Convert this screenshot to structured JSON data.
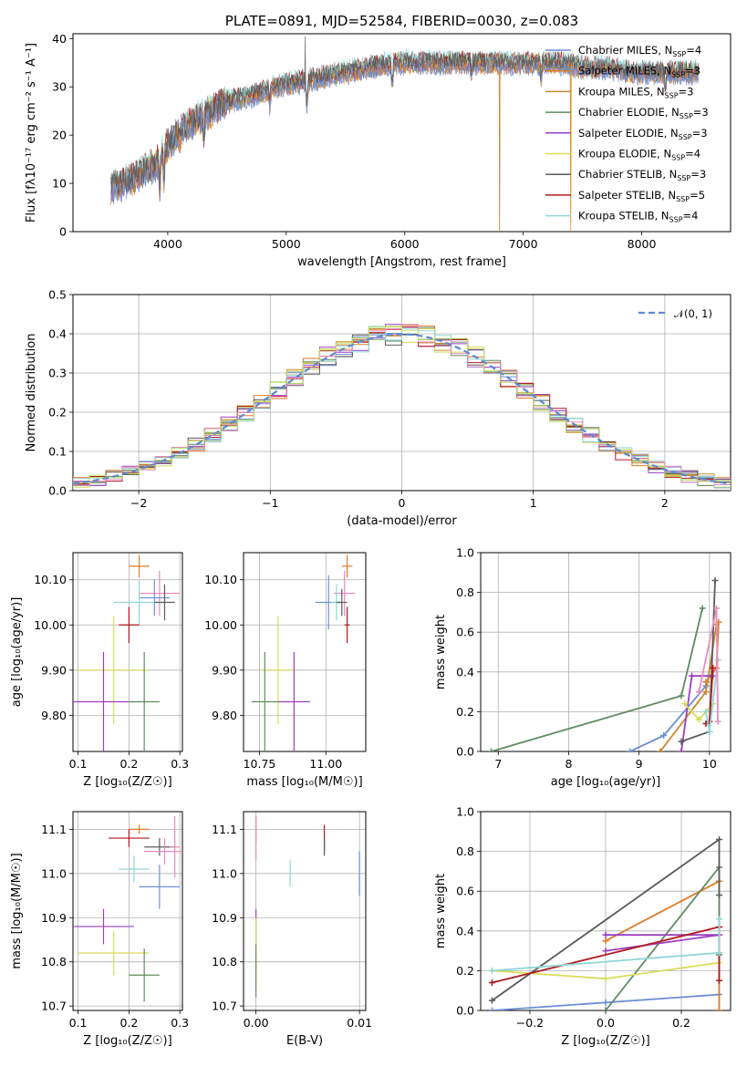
{
  "colors": [
    "#6d8fd6",
    "#e07b2a",
    "#c9882e",
    "#5e8c5e",
    "#9a3fc0",
    "#d8dc5a",
    "#5a5a5a",
    "#b0191f",
    "#8fd6d6",
    "#e98bc0",
    "#b8e060"
  ],
  "chart_data": [
    {
      "type": "line",
      "title": "PLATE=0891, MJD=52584, FIBERID=0030, z=0.083",
      "xlabel": "wavelength [Angstrom, rest frame]",
      "ylabel": "Flux [fλ10⁻¹⁷ erg cm⁻² s⁻¹ A⁻¹]",
      "xlim": [
        3200,
        8750
      ],
      "ylim": [
        0,
        41
      ],
      "xticks": [
        4000,
        5000,
        6000,
        7000,
        8000
      ],
      "yticks": [
        0,
        10,
        20,
        30,
        40
      ],
      "legend_position": "right",
      "legend": [
        {
          "label": "Chabrier MILES, N",
          "sub": "SSP",
          "suffix": "=4"
        },
        {
          "label": "Salpeter MILES, N",
          "sub": "SSP",
          "suffix": "=3"
        },
        {
          "label": "Kroupa MILES, N",
          "sub": "SSP",
          "suffix": "=3"
        },
        {
          "label": "Chabrier ELODIE, N",
          "sub": "SSP",
          "suffix": "=3"
        },
        {
          "label": "Salpeter ELODIE, N",
          "sub": "SSP",
          "suffix": "=3"
        },
        {
          "label": "Kroupa ELODIE, N",
          "sub": "SSP",
          "suffix": "=4"
        },
        {
          "label": "Chabrier STELIB, N",
          "sub": "SSP",
          "suffix": "=3"
        },
        {
          "label": "Salpeter STELIB, N",
          "sub": "SSP",
          "suffix": "=5"
        },
        {
          "label": "Kroupa STELIB, N",
          "sub": "SSP",
          "suffix": "=4"
        }
      ],
      "continuum": [
        [
          3520,
          9
        ],
        [
          3700,
          11
        ],
        [
          3900,
          14
        ],
        [
          4000,
          18
        ],
        [
          4100,
          21
        ],
        [
          4300,
          24
        ],
        [
          4500,
          27
        ],
        [
          4700,
          28
        ],
        [
          4900,
          30
        ],
        [
          5100,
          31
        ],
        [
          5300,
          32
        ],
        [
          5500,
          33
        ],
        [
          5700,
          34
        ],
        [
          5900,
          35
        ],
        [
          6100,
          35
        ],
        [
          6300,
          35
        ],
        [
          6500,
          35
        ],
        [
          6700,
          35
        ],
        [
          6900,
          35
        ],
        [
          7100,
          35
        ],
        [
          7300,
          35
        ],
        [
          7500,
          34
        ],
        [
          7700,
          34
        ],
        [
          7900,
          33
        ],
        [
          8100,
          33
        ],
        [
          8300,
          33
        ],
        [
          8500,
          33
        ]
      ],
      "features": [
        [
          3933,
          -6
        ],
        [
          3968,
          -6
        ],
        [
          4101,
          -3
        ],
        [
          4304,
          -4
        ],
        [
          4861,
          -3
        ],
        [
          5175,
          -5
        ],
        [
          5894,
          -5
        ],
        [
          6563,
          -2
        ],
        [
          7150,
          -3
        ],
        [
          8200,
          -3
        ]
      ],
      "spikes": [
        [
          5160,
          40,
          6
        ],
        [
          5160,
          -10,
          6
        ],
        [
          6800,
          -35,
          1
        ],
        [
          6800,
          -38,
          3
        ],
        [
          7400,
          -38,
          1
        ],
        [
          7405,
          -33,
          5
        ]
      ]
    },
    {
      "type": "histogram",
      "xlabel": "(data-model)/error",
      "ylabel": "Normed distribution",
      "xlim": [
        -2.5,
        2.5
      ],
      "ylim": [
        0,
        0.5
      ],
      "xticks": [
        -2,
        -1,
        0,
        1,
        2
      ],
      "yticks": [
        0,
        0.1,
        0.2,
        0.3,
        0.4,
        0.5
      ],
      "bin_width": 0.125,
      "legend": [
        {
          "label": "𝒩(0, 1)"
        }
      ],
      "mean": 0,
      "std": 1
    },
    {
      "type": "scatter",
      "xlabel": "Z [log₁₀(Z/Z☉)]",
      "ylabel": "age  [log₁₀(age/yr)]",
      "xlim": [
        0.09,
        0.305
      ],
      "ylim": [
        9.72,
        10.16
      ],
      "xticks": [
        0.1,
        0.2,
        0.3
      ],
      "yticks": [
        9.8,
        9.9,
        10.0,
        10.1
      ],
      "points": [
        {
          "x": 0.22,
          "y": 10.13,
          "xerr": 0.02,
          "yerr": 0.025,
          "c": 1
        },
        {
          "x": 0.26,
          "y": 10.07,
          "xerr": 0.04,
          "yerr": 0.05,
          "c": 9
        },
        {
          "x": 0.25,
          "y": 10.06,
          "xerr": 0.03,
          "yerr": 0.04,
          "c": 0
        },
        {
          "x": 0.22,
          "y": 10.05,
          "xerr": 0.05,
          "yerr": 0.05,
          "c": 8
        },
        {
          "x": 0.27,
          "y": 10.05,
          "xerr": 0.02,
          "yerr": 0.04,
          "c": 6
        },
        {
          "x": 0.2,
          "y": 10.0,
          "xerr": 0.02,
          "yerr": 0.04,
          "c": 7
        },
        {
          "x": 0.17,
          "y": 9.9,
          "xerr": 0.07,
          "yerr": 0.12,
          "c": 5
        },
        {
          "x": 0.15,
          "y": 9.83,
          "xerr": 0.06,
          "yerr": 0.11,
          "c": 4
        },
        {
          "x": 0.23,
          "y": 9.83,
          "xerr": 0.03,
          "yerr": 0.11,
          "c": 3
        }
      ]
    },
    {
      "type": "scatter",
      "xlabel": "mass [log₁₀(M/M☉)]",
      "ylabel": "",
      "xlim": [
        10.69,
        11.15
      ],
      "ylim": [
        9.72,
        10.16
      ],
      "xticks": [
        10.75,
        11.0
      ],
      "xticklabels": [
        "10.75",
        "11.00"
      ],
      "yticks": [
        9.8,
        9.9,
        10.0,
        10.1
      ],
      "points": [
        {
          "x": 11.08,
          "y": 10.13,
          "xerr": 0.02,
          "yerr": 0.025,
          "c": 1
        },
        {
          "x": 11.07,
          "y": 10.07,
          "xerr": 0.04,
          "yerr": 0.05,
          "c": 9
        },
        {
          "x": 11.01,
          "y": 10.05,
          "xerr": 0.05,
          "yerr": 0.06,
          "c": 0
        },
        {
          "x": 11.04,
          "y": 10.05,
          "xerr": 0.02,
          "yerr": 0.04,
          "c": 8
        },
        {
          "x": 11.06,
          "y": 10.05,
          "xerr": 0.02,
          "yerr": 0.03,
          "c": 6
        },
        {
          "x": 11.08,
          "y": 10.0,
          "xerr": 0.01,
          "yerr": 0.04,
          "c": 7
        },
        {
          "x": 10.82,
          "y": 9.9,
          "xerr": 0.06,
          "yerr": 0.12,
          "c": 5
        },
        {
          "x": 10.88,
          "y": 9.83,
          "xerr": 0.06,
          "yerr": 0.11,
          "c": 4
        },
        {
          "x": 10.77,
          "y": 9.83,
          "xerr": 0.05,
          "yerr": 0.11,
          "c": 3
        }
      ]
    },
    {
      "type": "line",
      "xlabel": "age  [log₁₀(age/yr)]",
      "ylabel": "mass weight",
      "xlim": [
        6.75,
        10.3
      ],
      "ylim": [
        0,
        1
      ],
      "xticks": [
        7,
        8,
        9,
        10
      ],
      "yticks": [
        0,
        0.2,
        0.4,
        0.6,
        0.8,
        1.0
      ],
      "series": [
        {
          "c": 0,
          "x": [
            8.87,
            9.35,
            9.95
          ],
          "y": [
            0.0,
            0.08,
            0.33
          ]
        },
        {
          "c": 1,
          "x": [
            9.95,
            10.1,
            10.13
          ],
          "y": [
            0.35,
            0.42,
            0.65
          ]
        },
        {
          "c": 2,
          "x": [
            9.3,
            9.95,
            10.1
          ],
          "y": [
            0.0,
            0.3,
            0.64
          ]
        },
        {
          "c": 3,
          "x": [
            6.9,
            9.6,
            9.9
          ],
          "y": [
            0.0,
            0.28,
            0.72
          ]
        },
        {
          "c": 4,
          "x": [
            9.6,
            9.75,
            10.05
          ],
          "y": [
            0.0,
            0.38,
            0.38
          ]
        },
        {
          "c": 5,
          "x": [
            9.65,
            9.85,
            10.05
          ],
          "y": [
            0.24,
            0.16,
            0.24
          ]
        },
        {
          "c": 6,
          "x": [
            9.6,
            10.0,
            10.08
          ],
          "y": [
            0.05,
            0.1,
            0.86
          ]
        },
        {
          "c": 7,
          "x": [
            9.95,
            10.0,
            10.05
          ],
          "y": [
            0.14,
            0.15,
            0.42
          ]
        },
        {
          "c": 8,
          "x": [
            9.95,
            10.0,
            10.12
          ],
          "y": [
            0.2,
            0.1,
            0.46
          ]
        },
        {
          "c": 9,
          "x": [
            9.85,
            10.1,
            10.12
          ],
          "y": [
            0.3,
            0.72,
            0.15
          ]
        }
      ]
    },
    {
      "type": "scatter",
      "xlabel": "Z [log₁₀(Z/Z☉)]",
      "ylabel": "mass [log₁₀(M/M☉)]",
      "xlim": [
        0.09,
        0.305
      ],
      "ylim": [
        10.69,
        11.14
      ],
      "xticks": [
        0.1,
        0.2,
        0.3
      ],
      "yticks": [
        10.7,
        10.8,
        10.9,
        11.0,
        11.1
      ],
      "points": [
        {
          "x": 0.22,
          "y": 11.1,
          "xerr": 0.02,
          "yerr": 0.01,
          "c": 1
        },
        {
          "x": 0.2,
          "y": 11.08,
          "xerr": 0.04,
          "yerr": 0.02,
          "c": 7
        },
        {
          "x": 0.26,
          "y": 11.06,
          "xerr": 0.03,
          "yerr": 0.02,
          "c": 6
        },
        {
          "x": 0.27,
          "y": 11.05,
          "xerr": 0.04,
          "yerr": 0.03,
          "c": 9
        },
        {
          "x": 0.29,
          "y": 11.06,
          "xerr": 0.01,
          "yerr": 0.07,
          "c": 9
        },
        {
          "x": 0.21,
          "y": 11.01,
          "xerr": 0.03,
          "yerr": 0.03,
          "c": 8
        },
        {
          "x": 0.26,
          "y": 10.97,
          "xerr": 0.04,
          "yerr": 0.05,
          "c": 0
        },
        {
          "x": 0.15,
          "y": 10.88,
          "xerr": 0.06,
          "yerr": 0.04,
          "c": 4
        },
        {
          "x": 0.17,
          "y": 10.82,
          "xerr": 0.07,
          "yerr": 0.05,
          "c": 5
        },
        {
          "x": 0.23,
          "y": 10.77,
          "xerr": 0.03,
          "yerr": 0.06,
          "c": 3
        }
      ]
    },
    {
      "type": "scatter",
      "xlabel": "E(B-V)",
      "ylabel": "",
      "xlim": [
        -0.0012,
        0.0106
      ],
      "ylim": [
        10.69,
        11.14
      ],
      "xticks": [
        0.0,
        0.01
      ],
      "xticklabels": [
        "0.00",
        "0.01"
      ],
      "yticks": [
        10.7,
        10.8,
        10.9,
        11.0,
        11.1
      ],
      "points": [
        {
          "x": 0.0,
          "y": 11.1,
          "xerr": 0,
          "yerr": 0.03,
          "c": 1
        },
        {
          "x": 0.0,
          "y": 11.08,
          "xerr": 0,
          "yerr": 0.05,
          "c": 9
        },
        {
          "x": 0.0066,
          "y": 11.08,
          "xerr": 0,
          "yerr": 0.03,
          "c": 7
        },
        {
          "x": 0.0066,
          "y": 11.06,
          "xerr": 0,
          "yerr": 0.02,
          "c": 6
        },
        {
          "x": 0.0033,
          "y": 11.0,
          "xerr": 0,
          "yerr": 0.03,
          "c": 8
        },
        {
          "x": 0.01,
          "y": 11.0,
          "xerr": 0,
          "yerr": 0.05,
          "c": 0
        },
        {
          "x": 0.0,
          "y": 10.88,
          "xerr": 0,
          "yerr": 0.04,
          "c": 4
        },
        {
          "x": 0.0,
          "y": 10.82,
          "xerr": 0,
          "yerr": 0.08,
          "c": 5
        },
        {
          "x": 0.0,
          "y": 10.78,
          "xerr": 0,
          "yerr": 0.06,
          "c": 3
        }
      ]
    },
    {
      "type": "line",
      "xlabel": "Z [log₁₀(Z/Z☉)]",
      "ylabel": "mass weight",
      "xlim": [
        -0.33,
        0.33
      ],
      "ylim": [
        0,
        1
      ],
      "xticks": [
        -0.2,
        0.0,
        0.2
      ],
      "xticklabels": [
        "−0.2",
        "0.0",
        "0.2"
      ],
      "yticks": [
        0,
        0.2,
        0.4,
        0.6,
        0.8,
        1.0
      ],
      "series": [
        {
          "c": 0,
          "x": [
            -0.3,
            0.0,
            0.3
          ],
          "y": [
            0.0,
            0.04,
            0.08
          ]
        },
        {
          "c": 1,
          "x": [
            0.0,
            0.3,
            0.3
          ],
          "y": [
            0.35,
            0.65,
            0.0
          ]
        },
        {
          "c": 3,
          "x": [
            0.0,
            0.3,
            0.3
          ],
          "y": [
            0.0,
            0.72,
            0.28
          ]
        },
        {
          "c": 4,
          "x": [
            0.0,
            0.3,
            0.0
          ],
          "y": [
            0.38,
            0.38,
            0.3
          ]
        },
        {
          "c": 5,
          "x": [
            -0.3,
            0.0,
            0.3
          ],
          "y": [
            0.2,
            0.16,
            0.24
          ]
        },
        {
          "c": 6,
          "x": [
            -0.3,
            0.3,
            0.3
          ],
          "y": [
            0.05,
            0.86,
            0.58
          ]
        },
        {
          "c": 7,
          "x": [
            -0.3,
            0.3,
            0.3
          ],
          "y": [
            0.14,
            0.42,
            0.15
          ]
        },
        {
          "c": 8,
          "x": [
            -0.3,
            0.3,
            0.3
          ],
          "y": [
            0.2,
            0.29,
            0.46
          ]
        }
      ]
    }
  ]
}
